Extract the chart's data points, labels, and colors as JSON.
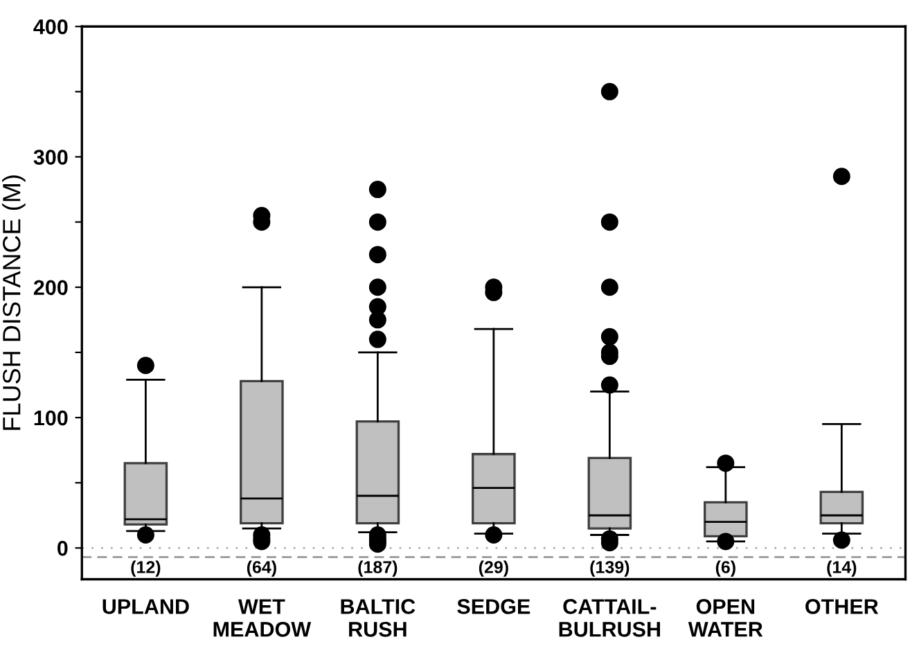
{
  "chart_data": {
    "type": "box",
    "ylabel": "FLUSH DISTANCE (M)",
    "categories": [
      "UPLAND",
      "WET\nMEADOW",
      "BALTIC\nRUSH",
      "SEDGE",
      "CATTAIL-\nBULRUSH",
      "OPEN\nWATER",
      "OTHER"
    ],
    "color": "#c0c0c0",
    "boxes": [
      {
        "low": 13,
        "q1": 18,
        "median": 22,
        "q3": 65,
        "high": 129,
        "outliers": [
          140,
          10
        ]
      },
      {
        "low": 15,
        "q1": 19,
        "median": 38,
        "q3": 128,
        "high": 200,
        "outliers": [
          255,
          250,
          10,
          7,
          5
        ]
      },
      {
        "low": 12,
        "q1": 19,
        "median": 40,
        "q3": 97,
        "high": 150,
        "outliers": [
          275,
          250,
          225,
          200,
          185,
          175,
          160,
          10,
          7,
          5,
          3
        ]
      },
      {
        "low": 11,
        "q1": 19,
        "median": 46,
        "q3": 72,
        "high": 168,
        "outliers": [
          200,
          196,
          10
        ]
      },
      {
        "low": 10,
        "q1": 15,
        "median": 25,
        "q3": 69,
        "high": 120,
        "outliers": [
          350,
          250,
          200,
          162,
          150,
          147,
          125,
          7,
          4
        ]
      },
      {
        "low": 5,
        "q1": 9,
        "median": 20,
        "q3": 35,
        "high": 62,
        "outliers": [
          65,
          5
        ]
      },
      {
        "low": 11,
        "q1": 19,
        "median": 25,
        "q3": 43,
        "high": 95,
        "outliers": [
          285,
          6
        ]
      }
    ],
    "ylim": [
      -24,
      400
    ],
    "yticks": [
      0,
      {
        "value": 50,
        "label": null
      },
      100,
      {
        "value": 150,
        "label": null
      },
      200,
      {
        "value": 250,
        "label": null
      },
      300,
      {
        "value": 350,
        "label": null
      },
      400
    ],
    "ref_lines": [
      {
        "axis": "y",
        "value": 0,
        "color": "#b0b0b0",
        "line_style": "dotted"
      },
      {
        "axis": "y",
        "value": -7,
        "color": "#a0a0a0",
        "line_style": "dashed"
      }
    ],
    "annotations": [
      "(12)",
      "(64)",
      "(187)",
      "(29)",
      "(139)",
      "(6)",
      "(14)"
    ],
    "grid": false
  }
}
